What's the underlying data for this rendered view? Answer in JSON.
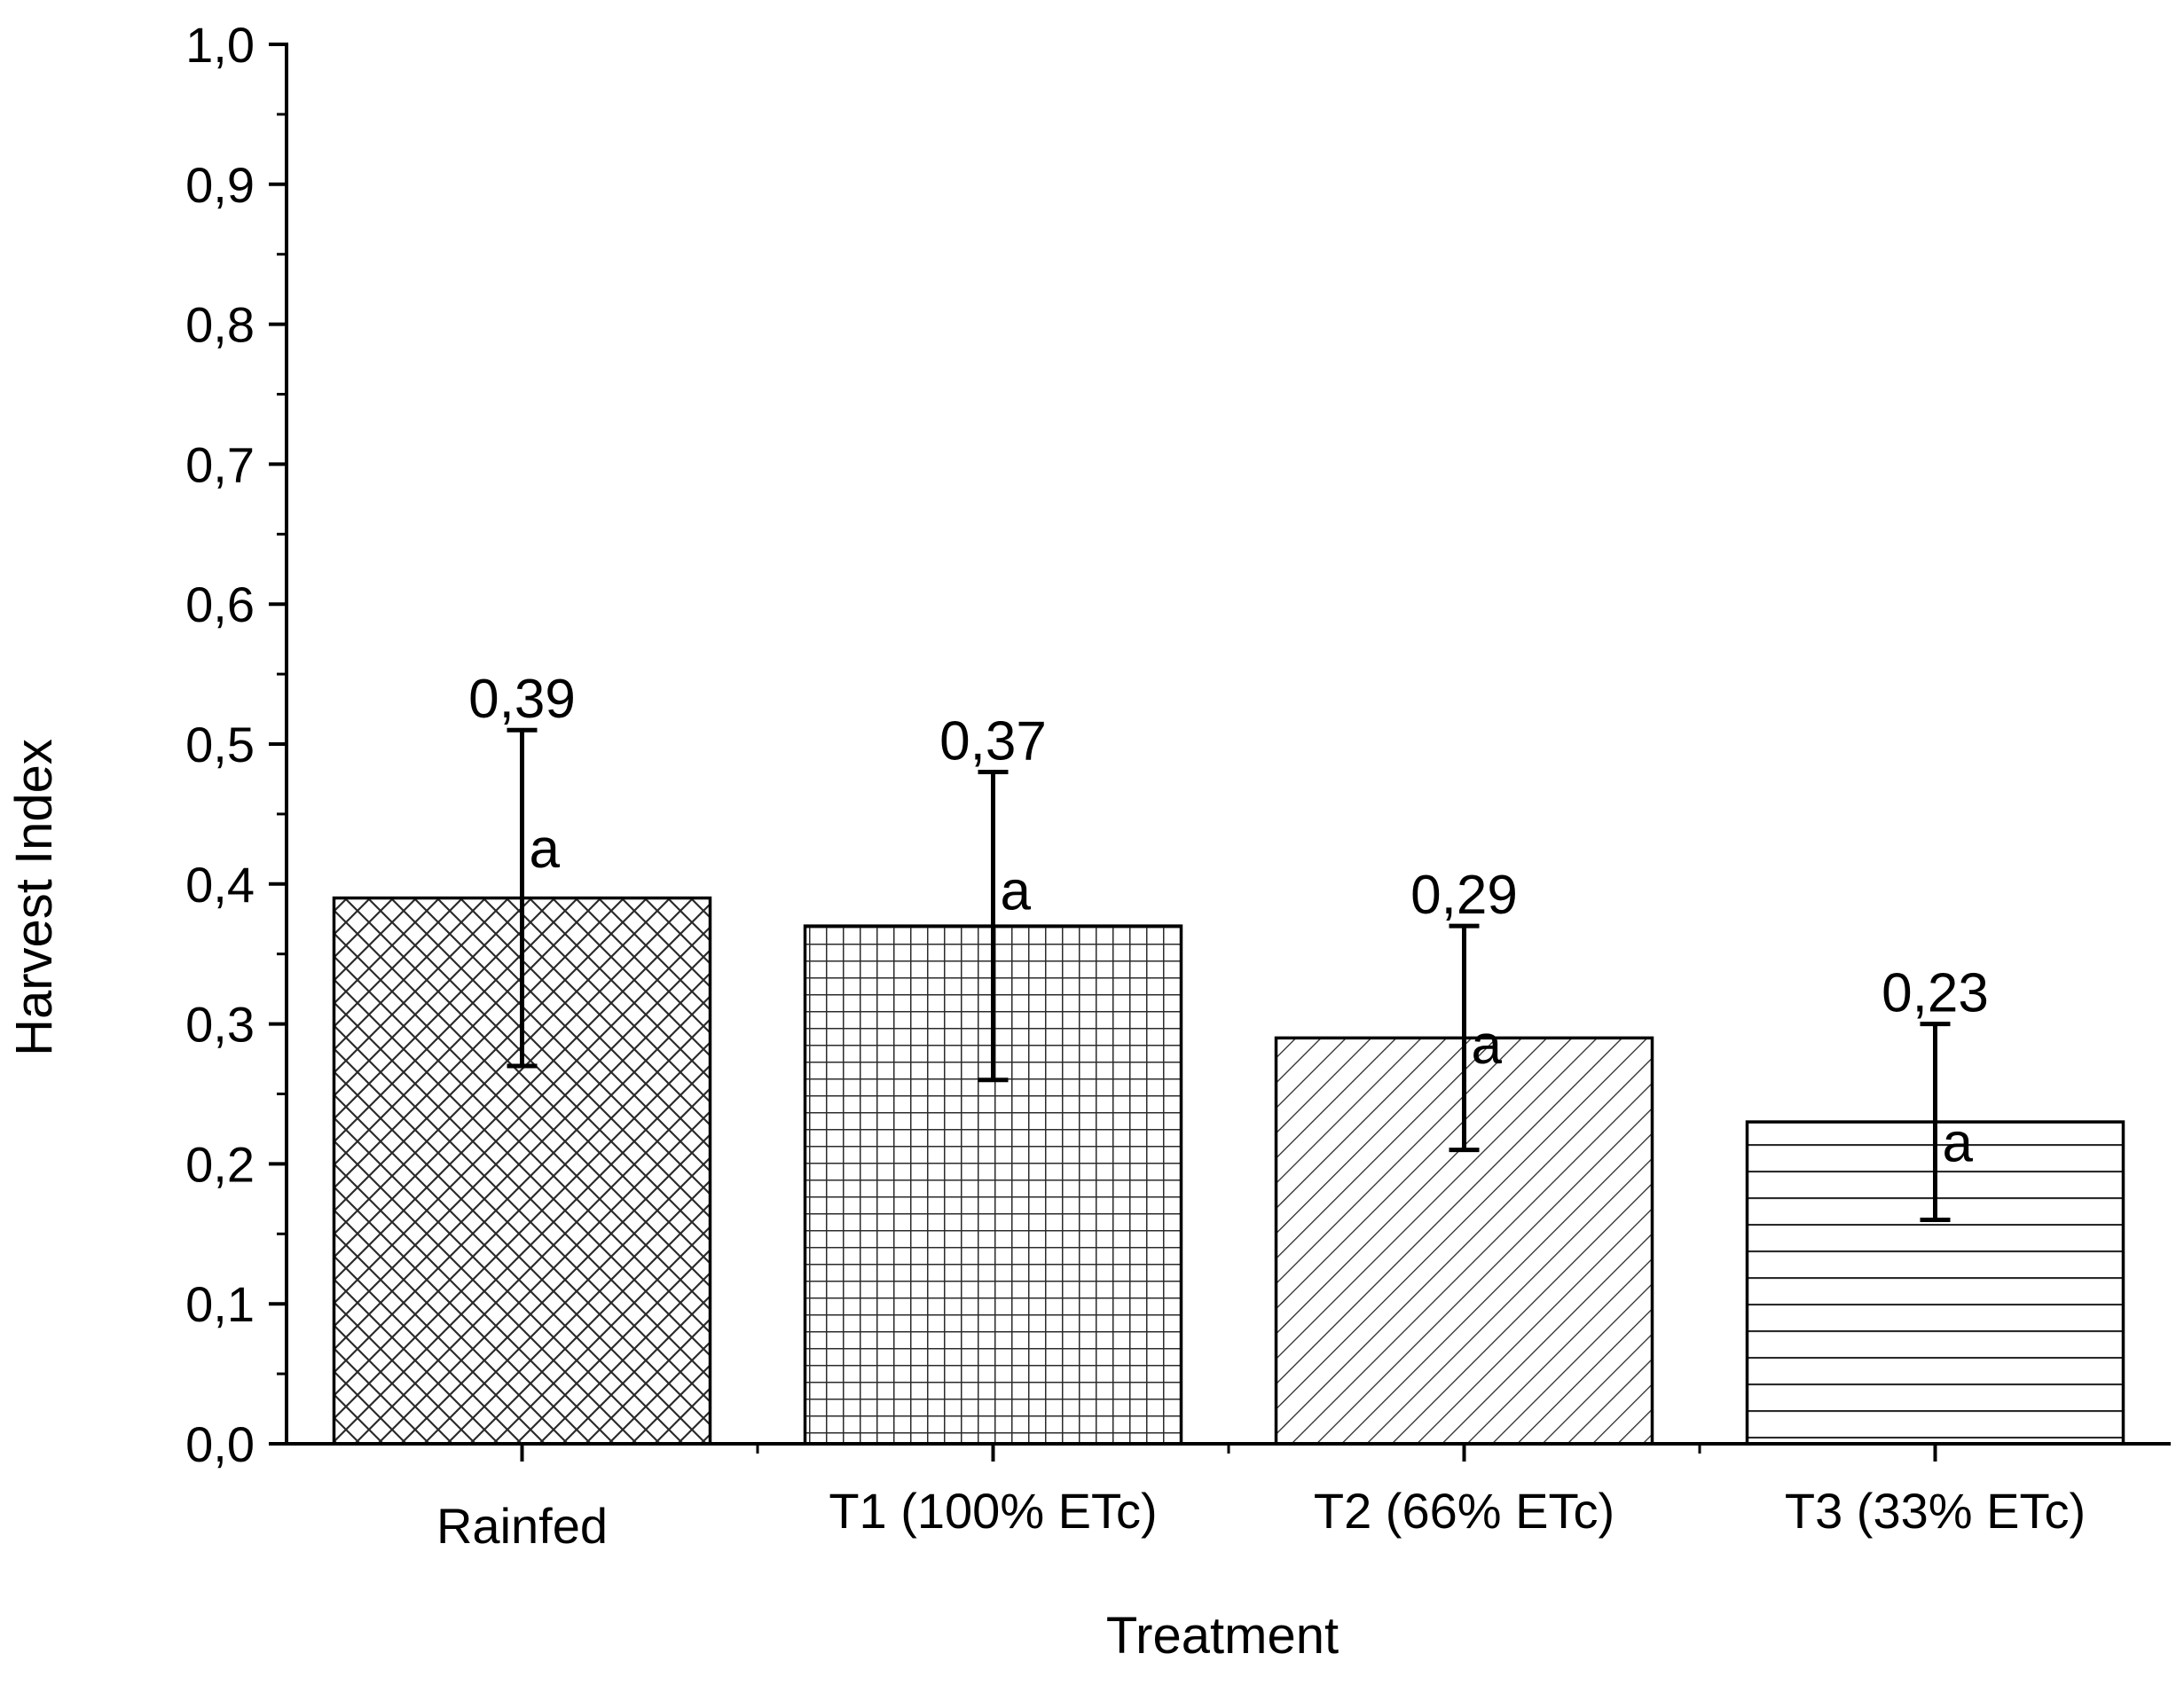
{
  "chart_data": {
    "type": "bar",
    "title": "",
    "xlabel": "Treatment",
    "ylabel": "Harvest Index",
    "categories": [
      "Rainfed",
      "T1 (100% ETc)",
      "T2 (66% ETc)",
      "T3 (33% ETc)"
    ],
    "values": [
      0.39,
      0.37,
      0.29,
      0.23
    ],
    "value_labels": [
      "0,39",
      "0,37",
      "0,29",
      "0,23"
    ],
    "error_low": [
      0.27,
      0.26,
      0.21,
      0.16
    ],
    "error_high": [
      0.51,
      0.48,
      0.37,
      0.3
    ],
    "significance_letters": [
      "a",
      "a",
      "a",
      "a"
    ],
    "patterns": [
      "crosshatch-diagonal",
      "grid",
      "diagonal",
      "horizontal"
    ],
    "ylim": [
      0.0,
      1.0
    ],
    "yticks": [
      0.0,
      0.1,
      0.2,
      0.3,
      0.4,
      0.5,
      0.6,
      0.7,
      0.8,
      0.9,
      1.0
    ],
    "ytick_labels": [
      "0,0",
      "0,1",
      "0,2",
      "0,3",
      "0,4",
      "0,5",
      "0,6",
      "0,7",
      "0,8",
      "0,9",
      "1,0"
    ],
    "grid": false,
    "legend": "none",
    "colors": {
      "axis": "#000000",
      "bar_fill": "#ffffff",
      "bar_stroke": "#000000",
      "pattern": "#2b2b2b"
    }
  }
}
